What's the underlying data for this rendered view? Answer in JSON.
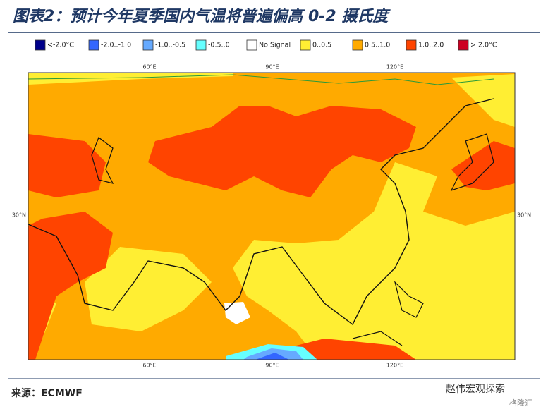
{
  "header": {
    "title": "图表2：预计今年夏季国内气温将普遍偏高 0-2 摄氏度"
  },
  "legend": {
    "items": [
      {
        "label": "<-2.0°C",
        "color": "#00008b"
      },
      {
        "label": "-2.0..-1.0",
        "color": "#3366ff"
      },
      {
        "label": "-1.0..-0.5",
        "color": "#66aaff"
      },
      {
        "label": "-0.5..0",
        "color": "#66ffff"
      },
      {
        "label": "No Signal",
        "color": "#ffffff"
      },
      {
        "label": "0..0.5",
        "color": "#ffee33"
      },
      {
        "label": "0.5..1.0",
        "color": "#ffaa00"
      },
      {
        "label": "1.0..2.0",
        "color": "#ff4400"
      },
      {
        "label": "> 2.0°C",
        "color": "#cc0022"
      }
    ]
  },
  "map": {
    "lon_labels": [
      "60°E",
      "90°E",
      "120°E"
    ],
    "lat_labels": [
      "30°N"
    ]
  },
  "footer": {
    "source": "来源：ECMWF",
    "watermark": "赵伟宏观探索",
    "brand": "格隆汇"
  }
}
